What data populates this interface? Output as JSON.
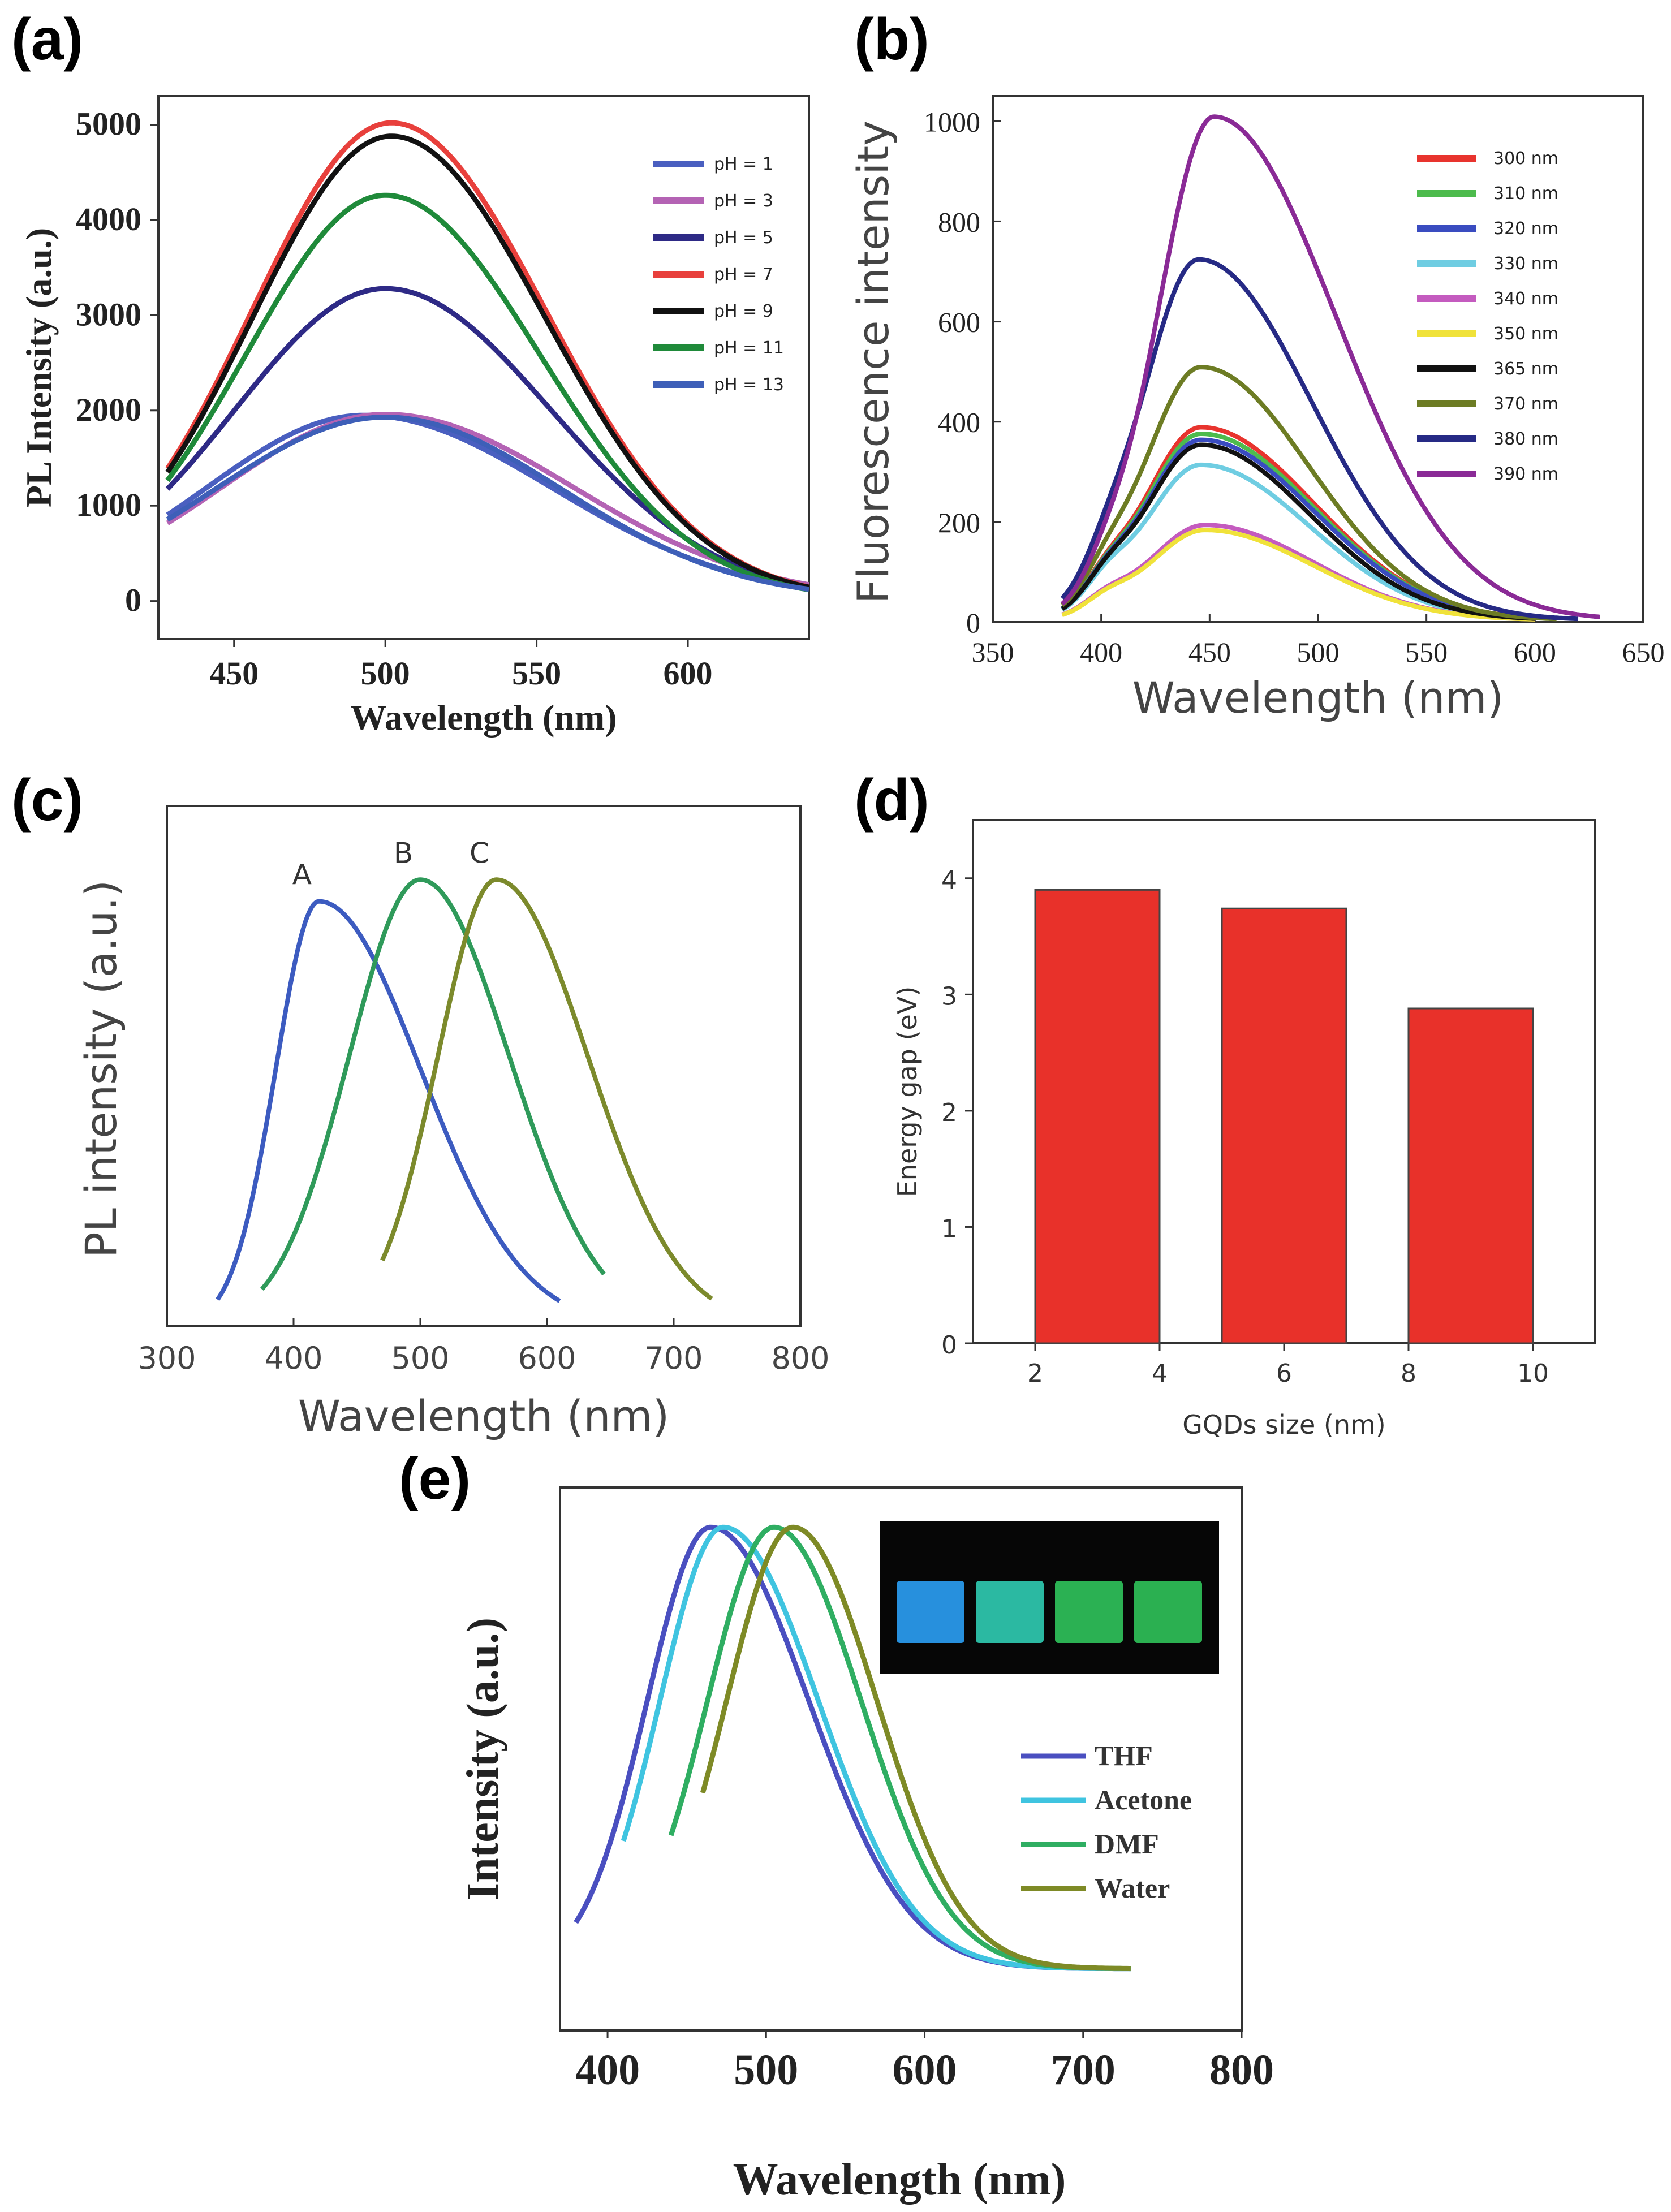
{
  "chart_data": [
    {
      "id": "a",
      "panel_label": "(a)",
      "type": "line",
      "title": "",
      "xlabel": "Wavelength (nm)",
      "ylabel": "PL Intensity (a.u.)",
      "xlim": [
        425,
        640
      ],
      "ylim": [
        -400,
        5300
      ],
      "xticks": [
        450,
        500,
        550,
        600
      ],
      "yticks": [
        0,
        1000,
        2000,
        3000,
        4000,
        5000
      ],
      "legend_position": "top-right",
      "series": [
        {
          "name": "pH = 1",
          "color": "#4a5fc0",
          "peak_x": 493,
          "peak_y": 1950,
          "sl": 52,
          "sr": 62,
          "base_l": -3500,
          "base_r": 10
        },
        {
          "name": "pH = 3",
          "color": "#b463b4",
          "peak_x": 500,
          "peak_y": 1960,
          "sl": 54,
          "sr": 62,
          "base_l": -3500,
          "base_r": 20
        },
        {
          "name": "pH = 5",
          "color": "#2e2a86",
          "peak_x": 500,
          "peak_y": 3280,
          "sl": 50,
          "sr": 55,
          "base_l": -3500,
          "base_r": 20
        },
        {
          "name": "pH = 7",
          "color": "#e8403c",
          "peak_x": 502,
          "peak_y": 5020,
          "sl": 46,
          "sr": 51,
          "base_l": -4500,
          "base_r": 30
        },
        {
          "name": "pH = 9",
          "color": "#111111",
          "peak_x": 502,
          "peak_y": 4880,
          "sl": 46,
          "sr": 51,
          "base_l": -4300,
          "base_r": 30
        },
        {
          "name": "pH = 11",
          "color": "#1f8a3a",
          "peak_x": 500,
          "peak_y": 4260,
          "sl": 46,
          "sr": 51,
          "base_l": -3600,
          "base_r": 30
        },
        {
          "name": "pH = 13",
          "color": "#3e5fb8",
          "peak_x": 500,
          "peak_y": 1930,
          "sl": 56,
          "sr": 58,
          "base_l": -3500,
          "base_r": 10
        }
      ]
    },
    {
      "id": "b",
      "panel_label": "(b)",
      "type": "line",
      "title": "",
      "xlabel": "Wavelength (nm)",
      "ylabel": "Fluorescence intensity",
      "xlim": [
        350,
        650
      ],
      "ylim": [
        0,
        1050
      ],
      "xticks": [
        350,
        400,
        450,
        500,
        550,
        600,
        650
      ],
      "yticks": [
        0,
        200,
        400,
        600,
        800,
        1000
      ],
      "legend_position": "top-right",
      "series": [
        {
          "name": "300 nm",
          "color": "#e8342e",
          "peak_x": 446,
          "peak_y": 385,
          "sl": 26,
          "sr": 52,
          "x0": 382,
          "x1": 600
        },
        {
          "name": "310 nm",
          "color": "#4dbb4d",
          "peak_x": 446,
          "peak_y": 372,
          "sl": 26,
          "sr": 52,
          "x0": 382,
          "x1": 600
        },
        {
          "name": "320 nm",
          "color": "#3a4cc0",
          "peak_x": 446,
          "peak_y": 360,
          "sl": 26,
          "sr": 52,
          "x0": 382,
          "x1": 600
        },
        {
          "name": "330 nm",
          "color": "#6fcde2",
          "peak_x": 446,
          "peak_y": 310,
          "sl": 26,
          "sr": 50,
          "x0": 382,
          "x1": 600
        },
        {
          "name": "340 nm",
          "color": "#c45bbf",
          "peak_x": 448,
          "peak_y": 190,
          "sl": 26,
          "sr": 50,
          "x0": 382,
          "x1": 600
        },
        {
          "name": "350 nm",
          "color": "#f0e23a",
          "peak_x": 448,
          "peak_y": 180,
          "sl": 26,
          "sr": 50,
          "x0": 382,
          "x1": 600
        },
        {
          "name": "365 nm",
          "color": "#111111",
          "peak_x": 446,
          "peak_y": 350,
          "sl": 26,
          "sr": 50,
          "x0": 382,
          "x1": 600
        },
        {
          "name": "370 nm",
          "color": "#6d7c24",
          "peak_x": 446,
          "peak_y": 505,
          "sl": 26,
          "sr": 50,
          "x0": 382,
          "x1": 610
        },
        {
          "name": "380 nm",
          "color": "#262a85",
          "peak_x": 445,
          "peak_y": 720,
          "sl": 26,
          "sr": 52,
          "x0": 382,
          "x1": 620
        },
        {
          "name": "390 nm",
          "color": "#8a2a96",
          "peak_x": 452,
          "peak_y": 1005,
          "sl": 26,
          "sr": 56,
          "x0": 382,
          "x1": 630
        }
      ]
    },
    {
      "id": "c",
      "panel_label": "(c)",
      "type": "line",
      "title": "",
      "xlabel": "Wavelength (nm)",
      "ylabel": "PL intensity (a.u.)",
      "xlim": [
        300,
        800
      ],
      "ylim": [
        0,
        1.2
      ],
      "xticks": [
        300,
        400,
        500,
        600,
        700,
        800
      ],
      "yticks": [],
      "legend_position": "none",
      "annotations": [
        "A",
        "B",
        "C"
      ],
      "series": [
        {
          "name": "A",
          "color": "#3c5bc0",
          "peak_x": 420,
          "peak_y": 0.98,
          "sl": 34,
          "sr": 80,
          "x0": 340,
          "x1": 610
        },
        {
          "name": "B",
          "color": "#2f9a5a",
          "peak_x": 500,
          "peak_y": 1.03,
          "sl": 56,
          "sr": 70,
          "x0": 375,
          "x1": 645
        },
        {
          "name": "C",
          "color": "#7c8a2c",
          "peak_x": 560,
          "peak_y": 1.03,
          "sl": 46,
          "sr": 72,
          "x0": 470,
          "x1": 730
        }
      ]
    },
    {
      "id": "d",
      "panel_label": "(d)",
      "type": "bar",
      "title": "",
      "xlabel": "GQDs size (nm)",
      "ylabel": "Energy gap (eV)",
      "xlim": [
        1,
        11
      ],
      "ylim": [
        0,
        4.5
      ],
      "xticks": [
        2,
        4,
        6,
        8,
        10
      ],
      "yticks": [
        0,
        1,
        2,
        3,
        4
      ],
      "bar_color": "#e8312a",
      "categories": [
        "2-4",
        "5-7",
        "8-10"
      ],
      "bars": [
        {
          "x_start": 2,
          "x_end": 4,
          "value": 3.9
        },
        {
          "x_start": 5,
          "x_end": 7,
          "value": 3.74
        },
        {
          "x_start": 8,
          "x_end": 10,
          "value": 2.88
        }
      ]
    },
    {
      "id": "e",
      "panel_label": "(e)",
      "type": "line",
      "title": "",
      "xlabel": "Wavelength (nm)",
      "ylabel": "Intensity (a.u.)",
      "xlim": [
        370,
        800
      ],
      "ylim": [
        -0.15,
        1.08
      ],
      "xticks": [
        400,
        500,
        600,
        700,
        800
      ],
      "yticks": [],
      "legend_position": "right",
      "inset_vial_colors": [
        "#2a9cf0",
        "#2fc9b0",
        "#2fc05a",
        "#2fbf58"
      ],
      "series": [
        {
          "name": "THF",
          "color": "#4a4fc0",
          "peak_x": 465,
          "peak_y": 1.0,
          "sl": 40,
          "sr": 62,
          "x0": 380,
          "x1": 730,
          "tail": 0.0
        },
        {
          "name": "Acetone",
          "color": "#3fc4e0",
          "peak_x": 473,
          "peak_y": 1.0,
          "sl": 40,
          "sr": 60,
          "x0": 410,
          "x1": 730,
          "tail": 0.0
        },
        {
          "name": "DMF",
          "color": "#2fae62",
          "peak_x": 505,
          "peak_y": 1.0,
          "sl": 42,
          "sr": 55,
          "x0": 440,
          "x1": 730,
          "tail": 0.0
        },
        {
          "name": "Water",
          "color": "#7e8a26",
          "peak_x": 517,
          "peak_y": 1.0,
          "sl": 42,
          "sr": 53,
          "x0": 460,
          "x1": 730,
          "tail": 0.0
        }
      ]
    }
  ]
}
